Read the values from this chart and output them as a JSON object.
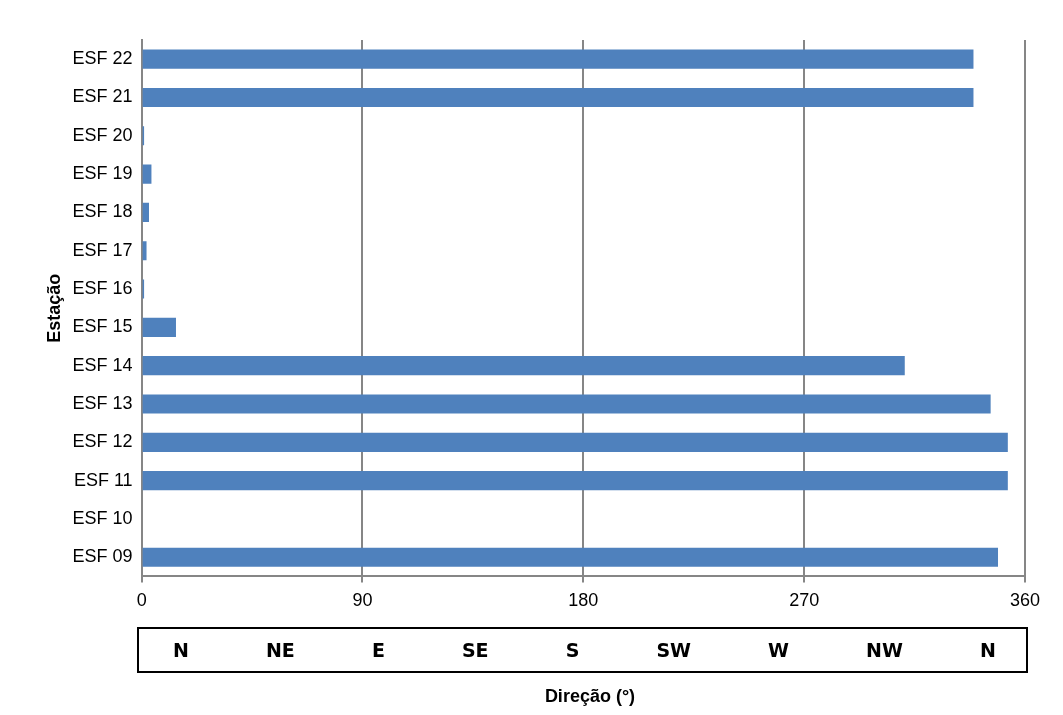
{
  "chart_data": {
    "type": "bar",
    "orientation": "horizontal",
    "ylabel": "Estação",
    "xlabel": "Direção (°)",
    "categories": [
      "ESF 22",
      "ESF 21",
      "ESF 20",
      "ESF 19",
      "ESF 18",
      "ESF 17",
      "ESF 16",
      "ESF 15",
      "ESF 14",
      "ESF 13",
      "ESF 12",
      "ESF 11",
      "ESF 10",
      "ESF 09"
    ],
    "values": [
      339,
      339,
      1,
      4,
      3,
      2,
      1,
      14,
      311,
      346,
      353,
      353,
      null,
      349
    ],
    "color": "#4f81bd",
    "xlim": [
      0,
      360
    ],
    "xticks": [
      0,
      90,
      180,
      270,
      360
    ],
    "grid": "x",
    "legend": false,
    "annotations": [
      "N",
      "NE",
      "E",
      "SE",
      "S",
      "SW",
      "W",
      "NW",
      "N"
    ]
  }
}
